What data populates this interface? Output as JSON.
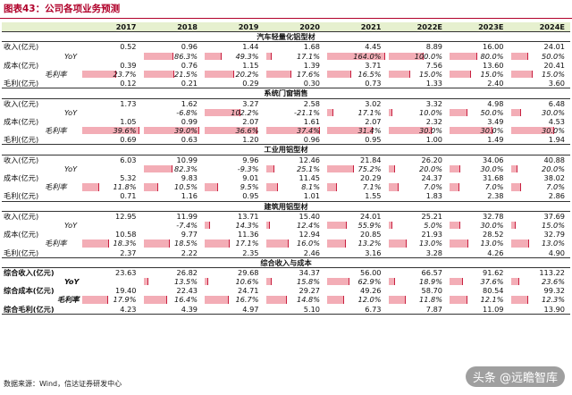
{
  "title": "图表43：公司各项业务预测",
  "years": [
    "2017",
    "2018",
    "2019",
    "2020",
    "2021",
    "2022E",
    "2023E",
    "2024E"
  ],
  "sections": [
    {
      "name": "汽车轻量化铝型材",
      "rows": [
        {
          "label": "收入(亿元)",
          "indent": false,
          "italic": false,
          "values": [
            "0.52",
            "0.96",
            "1.44",
            "1.68",
            "4.45",
            "8.89",
            "16.00",
            "24.01"
          ]
        },
        {
          "label": "YoY",
          "indent": true,
          "italic": true,
          "values": [
            "",
            "86.3%",
            "49.3%",
            "17.1%",
            "164.0%",
            "100.0%",
            "80.0%",
            "50.0%"
          ],
          "pct": [
            null,
            86.3,
            49.3,
            17.1,
            164.0,
            100.0,
            80.0,
            50.0
          ]
        },
        {
          "label": "成本(亿元)",
          "indent": false,
          "italic": false,
          "values": [
            "0.39",
            "0.76",
            "1.15",
            "1.39",
            "3.71",
            "7.56",
            "13.60",
            "20.41"
          ]
        },
        {
          "label": "毛利率",
          "indent": true,
          "italic": true,
          "values": [
            "23.7%",
            "21.5%",
            "20.2%",
            "17.6%",
            "16.5%",
            "15.0%",
            "15.0%",
            "15.0%"
          ],
          "pct": [
            23.7,
            21.5,
            20.2,
            17.6,
            16.5,
            15.0,
            15.0,
            15.0
          ]
        },
        {
          "label": "毛利(亿元)",
          "indent": false,
          "italic": false,
          "values": [
            "0.12",
            "0.21",
            "0.29",
            "0.30",
            "0.73",
            "1.33",
            "2.40",
            "3.60"
          ]
        }
      ]
    },
    {
      "name": "系统门窗销售",
      "rows": [
        {
          "label": "收入(亿元)",
          "indent": false,
          "italic": false,
          "values": [
            "1.73",
            "1.62",
            "3.27",
            "2.58",
            "3.02",
            "3.32",
            "4.98",
            "6.48"
          ]
        },
        {
          "label": "YoY",
          "indent": true,
          "italic": true,
          "values": [
            "",
            "-6.8%",
            "102.2%",
            "-21.1%",
            "17.1%",
            "10.0%",
            "50.0%",
            "30.0%"
          ],
          "pct": [
            null,
            -6.8,
            102.2,
            -21.1,
            17.1,
            10.0,
            50.0,
            30.0
          ]
        },
        {
          "label": "成本(亿元)",
          "indent": false,
          "italic": false,
          "values": [
            "1.05",
            "0.99",
            "2.07",
            "1.61",
            "2.07",
            "2.32",
            "3.49",
            "4.53"
          ]
        },
        {
          "label": "毛利率",
          "indent": true,
          "italic": true,
          "values": [
            "39.6%",
            "39.0%",
            "36.6%",
            "37.4%",
            "31.4%",
            "30.0%",
            "30.0%",
            "30.0%"
          ],
          "pct": [
            39.6,
            39.0,
            36.6,
            37.4,
            31.4,
            30.0,
            30.0,
            30.0
          ]
        },
        {
          "label": "毛利(亿元)",
          "indent": false,
          "italic": false,
          "values": [
            "0.69",
            "0.63",
            "1.20",
            "0.96",
            "0.95",
            "1.00",
            "1.49",
            "1.94"
          ]
        }
      ]
    },
    {
      "name": "工业用铝型材",
      "rows": [
        {
          "label": "收入(亿元)",
          "indent": false,
          "italic": false,
          "values": [
            "6.03",
            "10.99",
            "9.96",
            "12.46",
            "21.84",
            "26.20",
            "34.06",
            "40.88"
          ]
        },
        {
          "label": "YoY",
          "indent": true,
          "italic": true,
          "values": [
            "",
            "82.3%",
            "-9.3%",
            "25.1%",
            "75.2%",
            "20.0%",
            "30.0%",
            "20.0%"
          ],
          "pct": [
            null,
            82.3,
            -9.3,
            25.1,
            75.2,
            20.0,
            30.0,
            20.0
          ]
        },
        {
          "label": "成本(亿元)",
          "indent": false,
          "italic": false,
          "values": [
            "5.32",
            "9.83",
            "9.01",
            "11.45",
            "20.29",
            "24.37",
            "31.68",
            "38.02"
          ]
        },
        {
          "label": "毛利率",
          "indent": true,
          "italic": true,
          "values": [
            "11.8%",
            "10.5%",
            "9.5%",
            "8.1%",
            "7.1%",
            "7.0%",
            "7.0%",
            "7.0%"
          ],
          "pct": [
            11.8,
            10.5,
            9.5,
            8.1,
            7.1,
            7.0,
            7.0,
            7.0
          ]
        },
        {
          "label": "毛利(亿元)",
          "indent": false,
          "italic": false,
          "values": [
            "0.71",
            "1.16",
            "0.95",
            "1.01",
            "1.55",
            "1.83",
            "2.38",
            "2.86"
          ]
        }
      ]
    },
    {
      "name": "建筑用铝型材",
      "rows": [
        {
          "label": "收入(亿元)",
          "indent": false,
          "italic": false,
          "values": [
            "12.95",
            "11.99",
            "13.71",
            "15.40",
            "24.01",
            "25.21",
            "32.78",
            "37.69"
          ]
        },
        {
          "label": "YoY",
          "indent": true,
          "italic": true,
          "values": [
            "",
            "-7.4%",
            "14.3%",
            "12.4%",
            "55.9%",
            "5.0%",
            "30.0%",
            "15.0%"
          ],
          "pct": [
            null,
            -7.4,
            14.3,
            12.4,
            55.9,
            5.0,
            30.0,
            15.0
          ]
        },
        {
          "label": "成本(亿元)",
          "indent": false,
          "italic": false,
          "values": [
            "10.58",
            "9.77",
            "11.36",
            "12.94",
            "20.85",
            "21.93",
            "28.52",
            "32.79"
          ]
        },
        {
          "label": "毛利率",
          "indent": true,
          "italic": true,
          "values": [
            "18.3%",
            "18.5%",
            "17.1%",
            "16.0%",
            "13.2%",
            "13.0%",
            "13.0%",
            "13.0%"
          ],
          "pct": [
            18.3,
            18.5,
            17.1,
            16.0,
            13.2,
            13.0,
            13.0,
            13.0
          ]
        },
        {
          "label": "毛利(亿元)",
          "indent": false,
          "italic": false,
          "values": [
            "2.37",
            "2.22",
            "2.35",
            "2.46",
            "3.16",
            "3.28",
            "4.26",
            "4.90"
          ]
        }
      ]
    },
    {
      "name": "综合收入与成本",
      "bold": true,
      "rows": [
        {
          "label": "综合收入(亿元)",
          "indent": false,
          "italic": false,
          "values": [
            "23.63",
            "26.82",
            "29.68",
            "34.37",
            "56.00",
            "66.57",
            "91.62",
            "113.22"
          ]
        },
        {
          "label": "YoY",
          "indent": true,
          "italic": true,
          "values": [
            "",
            "13.5%",
            "10.6%",
            "15.8%",
            "62.9%",
            "18.9%",
            "37.6%",
            "23.6%"
          ],
          "pct": [
            null,
            13.5,
            10.6,
            15.8,
            62.9,
            18.9,
            37.6,
            23.6
          ]
        },
        {
          "label": "综合成本(亿元)",
          "indent": false,
          "italic": false,
          "values": [
            "19.40",
            "22.43",
            "24.71",
            "29.27",
            "49.26",
            "58.70",
            "80.54",
            "99.32"
          ]
        },
        {
          "label": "毛利率",
          "indent": true,
          "italic": true,
          "values": [
            "17.9%",
            "16.4%",
            "16.7%",
            "14.8%",
            "12.0%",
            "11.8%",
            "12.1%",
            "12.3%"
          ],
          "pct": [
            17.9,
            16.4,
            16.7,
            14.8,
            12.0,
            11.8,
            12.1,
            12.3
          ]
        },
        {
          "label": "综合毛利(亿元)",
          "indent": false,
          "italic": false,
          "values": [
            "4.23",
            "4.39",
            "4.97",
            "5.10",
            "6.73",
            "7.87",
            "11.09",
            "13.90"
          ]
        }
      ]
    }
  ],
  "source": "数据来源：Wind，信达证券研发中心",
  "watermark": "头条 @远瞻智库",
  "colors": {
    "title": "#b0002a",
    "header_bg": "#e6f0cf",
    "bar": "#f3adb6",
    "bar_edge": "#c82040"
  }
}
